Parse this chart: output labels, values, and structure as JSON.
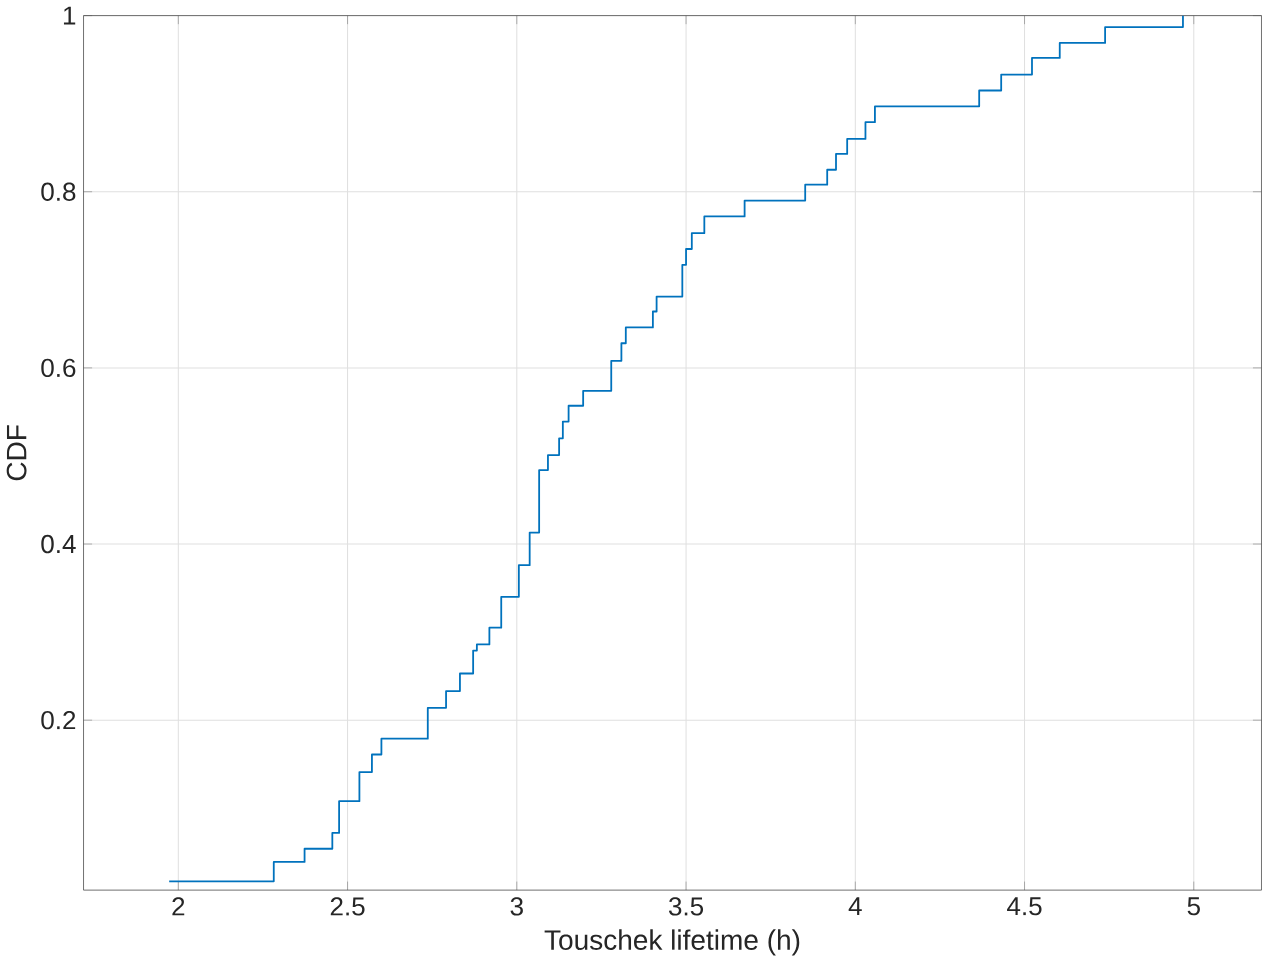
{
  "chart_data": {
    "type": "step",
    "xlabel": "Touschek lifetime (h)",
    "ylabel": "CDF",
    "xlim": [
      1.72,
      5.2
    ],
    "ylim": [
      0.007,
      1
    ],
    "xticks": [
      2,
      2.5,
      3,
      3.5,
      4,
      4.5,
      5
    ],
    "yticks": [
      0.2,
      0.4,
      0.6,
      0.8,
      1
    ],
    "grid": true,
    "series": [
      {
        "color": "#0072bd",
        "x": [
          1.973,
          2.282,
          2.373,
          2.455,
          2.475,
          2.535,
          2.572,
          2.6,
          2.737,
          2.791,
          2.832,
          2.871,
          2.882,
          2.919,
          2.954,
          3.006,
          3.038,
          3.066,
          3.092,
          3.125,
          3.136,
          3.153,
          3.196,
          3.279,
          3.309,
          3.322,
          3.402,
          3.413,
          3.489,
          3.5,
          3.517,
          3.554,
          3.673,
          3.852,
          3.917,
          3.943,
          3.976,
          4.03,
          4.058,
          4.366,
          4.431,
          4.522,
          4.604,
          4.738,
          4.968
        ],
        "values": [
          0.017,
          0.039,
          0.054,
          0.072,
          0.108,
          0.141,
          0.161,
          0.179,
          0.214,
          0.233,
          0.253,
          0.279,
          0.286,
          0.305,
          0.34,
          0.376,
          0.413,
          0.484,
          0.501,
          0.52,
          0.539,
          0.557,
          0.574,
          0.608,
          0.628,
          0.646,
          0.664,
          0.681,
          0.717,
          0.735,
          0.753,
          0.772,
          0.79,
          0.808,
          0.825,
          0.843,
          0.86,
          0.879,
          0.897,
          0.915,
          0.933,
          0.952,
          0.969,
          0.987,
          1.0
        ]
      }
    ]
  }
}
